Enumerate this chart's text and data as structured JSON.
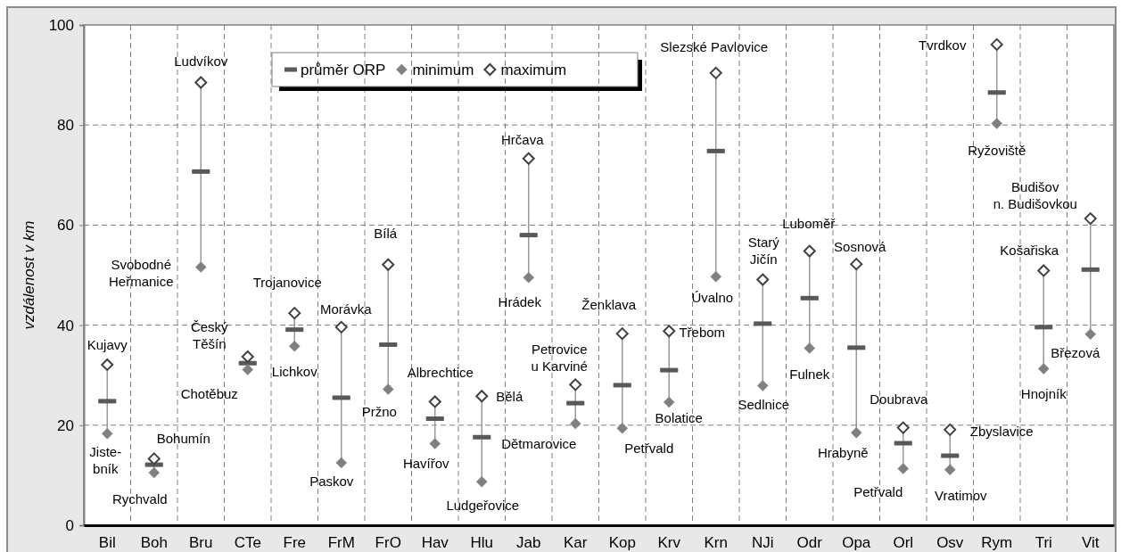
{
  "chart_data": {
    "type": "scatter",
    "ylabel": "vzdálenost v km",
    "categories": [
      "Bil",
      "Boh",
      "Bru",
      "CTe",
      "Fre",
      "FrM",
      "FrO",
      "Hav",
      "Hlu",
      "Jab",
      "Kar",
      "Kop",
      "Krv",
      "Krn",
      "NJi",
      "Odr",
      "Opa",
      "Orl",
      "Osv",
      "Rym",
      "Tri",
      "Vit"
    ],
    "series": [
      {
        "name": "průměr ORP",
        "type": "box",
        "color": "#595959",
        "boxes": [
          {
            "low": 18.3,
            "q1": 24.8,
            "median": 24.8,
            "q3": 24.8,
            "high": 32.1
          },
          {
            "low": 10.5,
            "q1": 12.1,
            "median": 12.1,
            "q3": 12.1,
            "high": 13.3
          },
          {
            "low": 51.6,
            "q1": 70.7,
            "median": 70.7,
            "q3": 70.7,
            "high": 88.5
          },
          {
            "low": 31.1,
            "q1": 32.4,
            "median": 32.4,
            "q3": 32.4,
            "high": 33.7
          },
          {
            "low": 35.8,
            "q1": 39.1,
            "median": 39.1,
            "q3": 39.1,
            "high": 42.4
          },
          {
            "low": 12.5,
            "q1": 25.5,
            "median": 25.5,
            "q3": 25.5,
            "high": 39.6
          },
          {
            "low": 27.2,
            "q1": 36.1,
            "median": 36.1,
            "q3": 36.1,
            "high": 52.1
          },
          {
            "low": 16.3,
            "q1": 21.3,
            "median": 21.3,
            "q3": 21.3,
            "high": 24.7
          },
          {
            "low": 8.7,
            "q1": 17.6,
            "median": 17.6,
            "q3": 17.6,
            "high": 25.8
          },
          {
            "low": 49.5,
            "q1": 58.0,
            "median": 58.0,
            "q3": 58.0,
            "high": 73.3
          },
          {
            "low": 20.3,
            "q1": 24.4,
            "median": 24.4,
            "q3": 24.4,
            "high": 28.1
          },
          {
            "low": 19.4,
            "q1": 28.0,
            "median": 28.0,
            "q3": 28.0,
            "high": 38.3
          },
          {
            "low": 24.6,
            "q1": 31.0,
            "median": 31.0,
            "q3": 31.0,
            "high": 38.8
          },
          {
            "low": 49.7,
            "q1": 74.8,
            "median": 74.8,
            "q3": 74.8,
            "high": 90.4
          },
          {
            "low": 27.9,
            "q1": 40.3,
            "median": 40.3,
            "q3": 40.3,
            "high": 49.1
          },
          {
            "low": 35.4,
            "q1": 45.4,
            "median": 45.4,
            "q3": 45.4,
            "high": 54.8
          },
          {
            "low": 18.5,
            "q1": 35.5,
            "median": 35.5,
            "q3": 35.5,
            "high": 52.2
          },
          {
            "low": 11.3,
            "q1": 16.4,
            "median": 16.4,
            "q3": 16.4,
            "high": 19.5
          },
          {
            "low": 11.1,
            "q1": 13.9,
            "median": 13.9,
            "q3": 13.9,
            "high": 19.1
          },
          {
            "low": 80.3,
            "q1": 86.5,
            "median": 86.5,
            "q3": 86.5,
            "high": 96.1
          },
          {
            "low": 31.3,
            "q1": 39.6,
            "median": 39.6,
            "q3": 39.6,
            "high": 50.9
          },
          {
            "low": 38.2,
            "q1": 51.1,
            "median": 51.1,
            "q3": 51.1,
            "high": 61.3
          }
        ]
      },
      {
        "name": "minimum",
        "color": "#808080",
        "marker": "diamond",
        "x": [
          "Bil",
          "Boh",
          "Bru",
          "CTe",
          "Fre",
          "FrM",
          "FrO",
          "Hav",
          "Hlu",
          "Jab",
          "Kar",
          "Kop",
          "Krv",
          "Krn",
          "NJi",
          "Odr",
          "Opa",
          "Orl",
          "Osv",
          "Rym",
          "Tri",
          "Vit"
        ],
        "values": [
          18.3,
          10.5,
          51.6,
          31.1,
          35.8,
          12.5,
          27.2,
          16.3,
          8.7,
          49.5,
          20.3,
          19.4,
          24.6,
          49.7,
          27.9,
          35.4,
          18.5,
          11.3,
          11.1,
          80.3,
          31.3,
          38.2
        ]
      },
      {
        "name": "maximum",
        "color": "#ffffff",
        "marker": "diamond",
        "x": [
          "Bil",
          "Boh",
          "Bru",
          "CTe",
          "Fre",
          "FrM",
          "FrO",
          "Hav",
          "Hlu",
          "Jab",
          "Kar",
          "Kop",
          "Krv",
          "Krn",
          "NJi",
          "Odr",
          "Opa",
          "Orl",
          "Osv",
          "Rym",
          "Tri",
          "Vit"
        ],
        "values": [
          32.1,
          13.3,
          88.5,
          33.7,
          42.4,
          39.6,
          52.1,
          24.7,
          25.8,
          73.3,
          28.1,
          38.3,
          38.8,
          90.4,
          49.1,
          54.8,
          52.2,
          19.5,
          19.1,
          96.1,
          50.9,
          61.3
        ]
      }
    ],
    "ylim": [
      0,
      100
    ],
    "yticks": [
      0,
      20,
      40,
      60,
      80,
      100
    ],
    "grid": true,
    "legend": "top",
    "annotations": [
      {
        "text": "Kujavy",
        "x": "Bil",
        "y": 32.1
      },
      {
        "text": "Jiste-\nbník",
        "x": "Bil",
        "y": 18.3
      },
      {
        "text": "Bohumín",
        "x": "Boh",
        "y": 13.3
      },
      {
        "text": "Rychvald",
        "x": "Boh",
        "y": 10.5
      },
      {
        "text": "Ludvíkov",
        "x": "Bru",
        "y": 88.5
      },
      {
        "text": "Svobodné\nHeřmanice",
        "x": "Bru",
        "y": 51.6
      },
      {
        "text": "Český\nTěšín",
        "x": "CTe",
        "y": 33.7
      },
      {
        "text": "Chotěbuz",
        "x": "CTe",
        "y": 31.1
      },
      {
        "text": "Trojanovice",
        "x": "Fre",
        "y": 42.4
      },
      {
        "text": "Lichkov",
        "x": "Fre",
        "y": 35.8
      },
      {
        "text": "Morávka",
        "x": "FrM",
        "y": 39.6
      },
      {
        "text": "Paskov",
        "x": "FrM",
        "y": 12.5
      },
      {
        "text": "Bílá",
        "x": "FrO",
        "y": 52.1
      },
      {
        "text": "Pržno",
        "x": "FrO",
        "y": 27.2
      },
      {
        "text": "Albrechtice",
        "x": "Hav",
        "y": 24.7
      },
      {
        "text": "Havířov",
        "x": "Hav",
        "y": 16.3
      },
      {
        "text": "Bělá",
        "x": "Hlu",
        "y": 25.8
      },
      {
        "text": "Ludgeřovice",
        "x": "Hlu",
        "y": 8.7
      },
      {
        "text": "Hrčava",
        "x": "Jab",
        "y": 73.3
      },
      {
        "text": "Hrádek",
        "x": "Jab",
        "y": 49.5
      },
      {
        "text": "Petrovice\nu Karviné",
        "x": "Kar",
        "y": 28.1
      },
      {
        "text": "Dětmarovice",
        "x": "Kar",
        "y": 20.3
      },
      {
        "text": "Ženklava",
        "x": "Kop",
        "y": 38.3
      },
      {
        "text": "Petřvald",
        "x": "Kop",
        "y": 19.4
      },
      {
        "text": "Třebom",
        "x": "Krv",
        "y": 38.8
      },
      {
        "text": "Bolatice",
        "x": "Krv",
        "y": 24.6
      },
      {
        "text": "Slezské Pavlovice",
        "x": "Krn",
        "y": 90.4
      },
      {
        "text": "Úvalno",
        "x": "Krn",
        "y": 49.7
      },
      {
        "text": "Starý\nJičín",
        "x": "NJi",
        "y": 49.1
      },
      {
        "text": "Sedlnice",
        "x": "NJi",
        "y": 27.9
      },
      {
        "text": "Luboměř",
        "x": "Odr",
        "y": 54.8
      },
      {
        "text": "Fulnek",
        "x": "Odr",
        "y": 35.4
      },
      {
        "text": "Sosnová",
        "x": "Opa",
        "y": 52.2
      },
      {
        "text": "Hrabyně",
        "x": "Opa",
        "y": 18.5
      },
      {
        "text": "Doubrava",
        "x": "Orl",
        "y": 19.5
      },
      {
        "text": "Petřvald",
        "x": "Orl",
        "y": 11.3
      },
      {
        "text": "Zbyslavice",
        "x": "Osv",
        "y": 19.1
      },
      {
        "text": "Vratimov",
        "x": "Osv",
        "y": 11.1
      },
      {
        "text": "Tvrdkov",
        "x": "Rym",
        "y": 96.1
      },
      {
        "text": "Ryžoviště",
        "x": "Rym",
        "y": 80.3
      },
      {
        "text": "Košařiska",
        "x": "Tri",
        "y": 50.9
      },
      {
        "text": "Hnojník",
        "x": "Tri",
        "y": 31.3
      },
      {
        "text": "Budišov\nn. Budišovkou",
        "x": "Vit",
        "y": 61.3
      },
      {
        "text": "Březová",
        "x": "Vit",
        "y": 38.2
      }
    ]
  }
}
